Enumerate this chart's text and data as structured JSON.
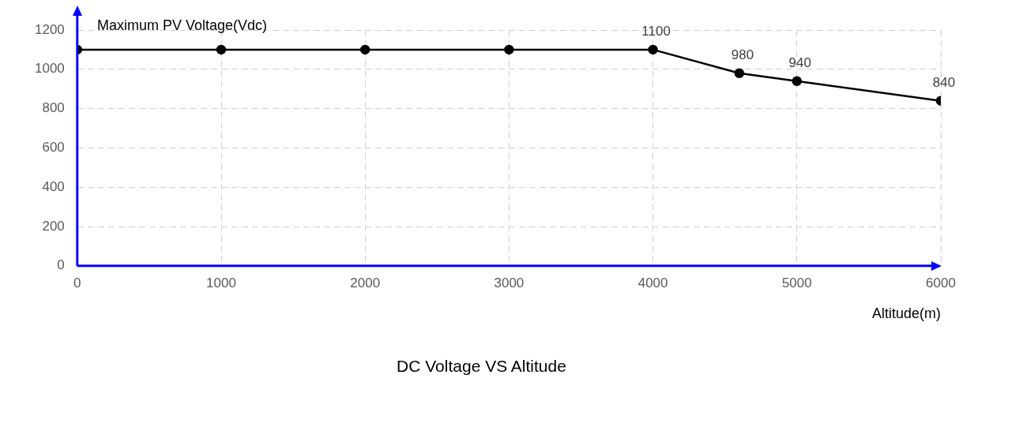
{
  "chart_data": {
    "type": "line",
    "title": "DC Voltage VS Altitude",
    "xlabel": "Altitude(m)",
    "ylabel": "Maximum PV Voltage(Vdc)",
    "x": [
      0,
      1000,
      2000,
      3000,
      4000,
      4600,
      5000,
      6000
    ],
    "series": [
      {
        "color": "#000000",
        "values": [
          1100,
          1100,
          1100,
          1100,
          1100,
          980,
          940,
          840
        ],
        "value_labels": [
          null,
          null,
          null,
          null,
          "1100",
          "980",
          "940",
          "840"
        ]
      }
    ],
    "xlim": [
      0,
      6000
    ],
    "xticks": [
      0,
      1000,
      2000,
      3000,
      4000,
      5000,
      6000
    ],
    "ylim": [
      0,
      1200
    ],
    "yticks": [
      0,
      200,
      400,
      600,
      800,
      1000,
      1200
    ],
    "grid": true,
    "legend": false,
    "marker": "circle",
    "line_style": "solid"
  }
}
